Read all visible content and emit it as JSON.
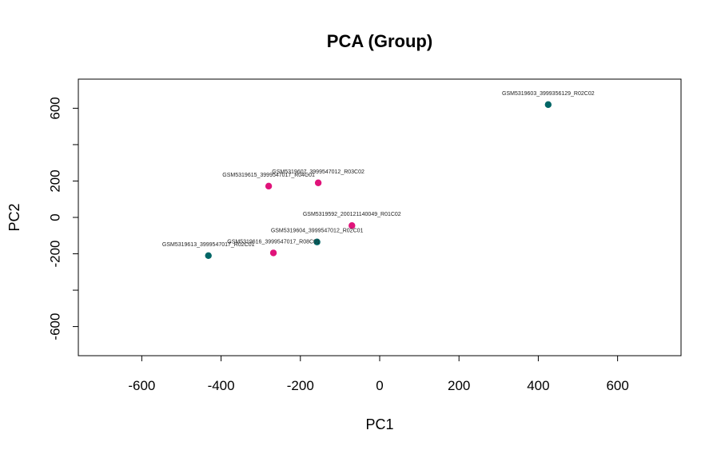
{
  "chart_data": {
    "type": "scatter",
    "title": "PCA (Group)",
    "xlabel": "PC1",
    "ylabel": "PC2",
    "xlim": [
      -760,
      760
    ],
    "ylim": [
      -760,
      760
    ],
    "x_ticks": [
      -600,
      -400,
      -200,
      0,
      200,
      400,
      600
    ],
    "y_ticks": [
      -600,
      -400,
      -200,
      0,
      200,
      400,
      600
    ],
    "y_tick_labels": [
      "-600",
      "",
      "-200",
      "0",
      "200",
      "",
      "600"
    ],
    "grid": false,
    "points": [
      {
        "label": "GSM5319603_3999356129_R02C02",
        "x": 425,
        "y": 620,
        "color": "#006666"
      },
      {
        "label": "GSM5319615_3999547017_R04C01",
        "x": -280,
        "y": 172,
        "color": "#E0137A"
      },
      {
        "label": "GSM5319607_3999547012_R03C02",
        "x": -155,
        "y": 190,
        "color": "#E0137A"
      },
      {
        "label": "GSM5319592_200121140049_R01C02",
        "x": -70,
        "y": -45,
        "color": "#E0137A"
      },
      {
        "label": "GSM5319604_3999547012_R02C01",
        "x": -158,
        "y": -135,
        "color": "#006666"
      },
      {
        "label": "GSM5319616_3999547017_R08C01",
        "x": -268,
        "y": -195,
        "color": "#E0137A"
      },
      {
        "label": "GSM5319613_3999547017_R02C01",
        "x": -432,
        "y": -210,
        "color": "#006666"
      }
    ]
  }
}
